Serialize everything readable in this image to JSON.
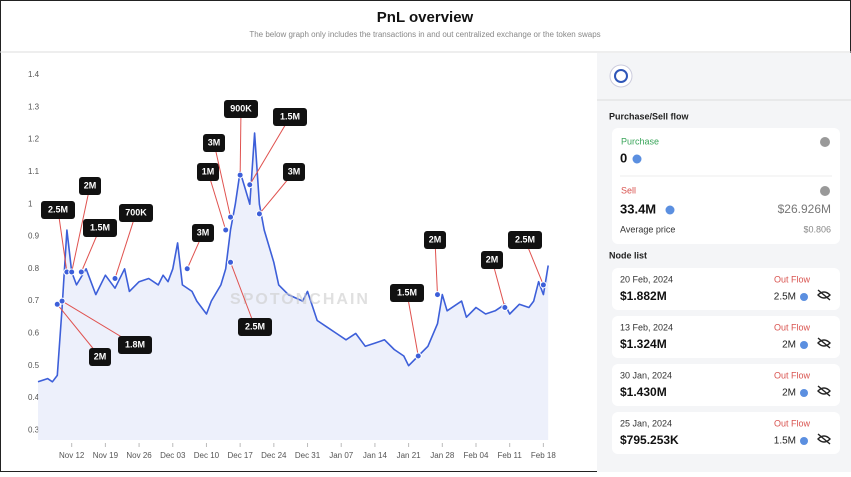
{
  "header": {
    "title": "PnL overview",
    "subtitle": "The below graph only includes the transactions in and out centralized exchange or the token swaps"
  },
  "chart_data": {
    "type": "line",
    "color": "#3d5fd9",
    "watermark": "SPOTONCHAIN",
    "x": [
      -7,
      -5,
      -4,
      -3,
      -2,
      -1,
      0,
      1,
      3,
      5,
      7,
      9,
      11,
      12,
      14,
      16,
      18,
      19,
      20,
      21,
      22,
      23,
      25,
      26,
      28,
      29,
      31,
      32,
      33,
      34,
      35,
      36,
      37,
      38,
      39,
      40,
      42,
      43,
      45,
      48,
      49,
      51,
      53,
      55,
      57,
      59,
      61,
      63,
      65,
      67,
      69,
      70,
      72,
      74,
      76,
      77,
      78,
      81,
      82,
      84,
      86,
      88,
      90,
      91,
      93,
      95,
      96,
      97,
      98,
      99
    ],
    "values": [
      0.45,
      0.46,
      0.45,
      0.47,
      0.68,
      0.92,
      0.79,
      0.75,
      0.8,
      0.72,
      0.78,
      0.74,
      0.8,
      0.73,
      0.76,
      0.77,
      0.75,
      0.78,
      0.76,
      0.8,
      0.88,
      0.75,
      0.73,
      0.7,
      0.66,
      0.7,
      0.75,
      0.8,
      0.92,
      1.0,
      1.1,
      1.05,
      1.0,
      1.22,
      1.0,
      0.92,
      0.82,
      0.75,
      0.72,
      0.7,
      0.73,
      0.64,
      0.62,
      0.6,
      0.58,
      0.6,
      0.56,
      0.57,
      0.58,
      0.55,
      0.53,
      0.5,
      0.53,
      0.56,
      0.63,
      0.72,
      0.67,
      0.7,
      0.65,
      0.68,
      0.66,
      0.67,
      0.69,
      0.66,
      0.69,
      0.68,
      0.7,
      0.76,
      0.72,
      0.81
    ],
    "xlim": [
      -7,
      100
    ],
    "xticks": [
      {
        "value": 0,
        "label": "Nov 12"
      },
      {
        "value": 7,
        "label": "Nov 19"
      },
      {
        "value": 14,
        "label": "Nov 26"
      },
      {
        "value": 21,
        "label": "Dec 03"
      },
      {
        "value": 28,
        "label": "Dec 10"
      },
      {
        "value": 35,
        "label": "Dec 17"
      },
      {
        "value": 42,
        "label": "Dec 24"
      },
      {
        "value": 49,
        "label": "Dec 31"
      },
      {
        "value": 56,
        "label": "Jan 07"
      },
      {
        "value": 63,
        "label": "Jan 14"
      },
      {
        "value": 70,
        "label": "Jan 21"
      },
      {
        "value": 77,
        "label": "Jan 28"
      },
      {
        "value": 84,
        "label": "Feb 04"
      },
      {
        "value": 91,
        "label": "Feb 11"
      },
      {
        "value": 98,
        "label": "Feb 18"
      }
    ],
    "ylim": [
      0.27,
      1.44
    ],
    "yticks": [
      0.3,
      0.4,
      0.5,
      0.6,
      0.7,
      0.8,
      0.9,
      1,
      1.1,
      1.2,
      1.3,
      1.4
    ],
    "grid": false,
    "annotations": [
      {
        "label": "2.5M",
        "x": -1,
        "y": 0.79
      },
      {
        "label": "2M",
        "x": 0,
        "y": 0.79
      },
      {
        "label": "1.5M",
        "x": 2,
        "y": 0.79
      },
      {
        "label": "700K",
        "x": 9,
        "y": 0.77
      },
      {
        "label": "3M",
        "x": 24,
        "y": 0.8
      },
      {
        "label": "1M",
        "x": 32,
        "y": 0.92
      },
      {
        "label": "3M",
        "x": 33,
        "y": 0.96
      },
      {
        "label": "900K",
        "x": 35,
        "y": 1.09
      },
      {
        "label": "1.5M",
        "x": 37,
        "y": 1.06
      },
      {
        "label": "3M",
        "x": 39,
        "y": 0.97
      },
      {
        "label": "2.5M",
        "x": 33,
        "y": 0.82
      },
      {
        "label": "2M",
        "x": -3,
        "y": 0.69
      },
      {
        "label": "1.8M",
        "x": -2,
        "y": 0.7
      },
      {
        "label": "1.5M",
        "x": 72,
        "y": 0.53
      },
      {
        "label": "2M",
        "x": 76,
        "y": 0.72
      },
      {
        "label": "2M",
        "x": 90,
        "y": 0.68
      },
      {
        "label": "2.5M",
        "x": 98,
        "y": 0.75
      }
    ]
  },
  "panel": {
    "flow_title": "Purchase/Sell flow",
    "purchase_label": "Purchase",
    "purchase_value": "0",
    "sell_label": "Sell",
    "sell_value": "33.4M",
    "sell_usd": "$26.926M",
    "avg_label": "Average price",
    "avg_value": "$0.806",
    "node_title": "Node list",
    "nodes": [
      {
        "date": "20 Feb, 2024",
        "direction": "Out Flow",
        "usd": "$1.882M",
        "amount": "2.5M"
      },
      {
        "date": "13 Feb, 2024",
        "direction": "Out Flow",
        "usd": "$1.324M",
        "amount": "2M"
      },
      {
        "date": "30 Jan, 2024",
        "direction": "Out Flow",
        "usd": "$1.430M",
        "amount": "2M"
      },
      {
        "date": "25 Jan, 2024",
        "direction": "Out Flow",
        "usd": "$795.253K",
        "amount": "1.5M"
      }
    ]
  }
}
